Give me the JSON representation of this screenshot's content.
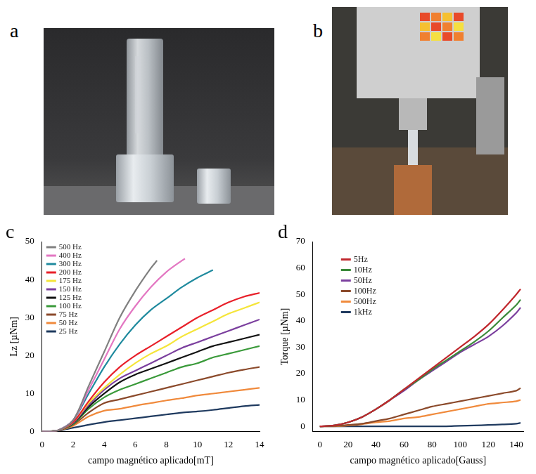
{
  "photos": [
    {
      "panel_label": "a"
    },
    {
      "panel_label": "b"
    }
  ],
  "chart_data": [
    {
      "panel_label": "c",
      "type": "line",
      "x_label": "campo magnético aplicado[mT]",
      "y_label": "Lz [µNm]",
      "xlim": [
        0,
        14
      ],
      "xticks": [
        0,
        2,
        4,
        6,
        8,
        10,
        12,
        14
      ],
      "ylim": [
        0,
        50
      ],
      "yticks": [
        0,
        10,
        20,
        30,
        40,
        50
      ],
      "grid": false,
      "legend": "upper left",
      "series": [
        {
          "name": "500 Hz",
          "color": "#808080",
          "x": [
            0,
            1,
            2,
            3,
            4,
            5,
            6,
            7,
            7.4
          ],
          "values": [
            0,
            0.3,
            3,
            12,
            21,
            30,
            37,
            43,
            45
          ]
        },
        {
          "name": "400 Hz",
          "color": "#e377c2",
          "x": [
            0,
            1,
            2,
            3,
            4,
            5,
            6,
            7,
            8,
            9,
            9.2
          ],
          "values": [
            0,
            0.3,
            3,
            11,
            19,
            27,
            33,
            38,
            42,
            45,
            45.5
          ]
        },
        {
          "name": "300 Hz",
          "color": "#1f8a9e",
          "x": [
            0,
            1,
            2,
            3,
            4,
            5,
            6,
            7,
            8,
            9,
            10,
            11
          ],
          "values": [
            0,
            0.3,
            3,
            10,
            17,
            23,
            28,
            32,
            35,
            38,
            40.5,
            42.5
          ]
        },
        {
          "name": "200 Hz",
          "color": "#e8202a",
          "x": [
            0,
            1,
            2,
            3,
            4,
            5,
            6,
            7,
            8,
            9,
            10,
            11,
            12,
            13,
            14
          ],
          "values": [
            0,
            0.3,
            2.5,
            8,
            13,
            17,
            20,
            22.5,
            25,
            27.5,
            30,
            32,
            34,
            35.5,
            36.5
          ]
        },
        {
          "name": "175 Hz",
          "color": "#f5e53a",
          "x": [
            0,
            1,
            2,
            3,
            4,
            5,
            6,
            7,
            8,
            9,
            10,
            11,
            12,
            13,
            14
          ],
          "values": [
            0,
            0.3,
            2.5,
            7.5,
            11.5,
            15,
            18,
            20.5,
            22.5,
            25,
            27,
            29,
            31,
            32.5,
            34
          ]
        },
        {
          "name": "150 Hz",
          "color": "#7b3f9e",
          "x": [
            0,
            1,
            2,
            3,
            4,
            5,
            6,
            7,
            8,
            9,
            10,
            11,
            12,
            13,
            14
          ],
          "values": [
            0,
            0.3,
            2.3,
            7,
            11,
            14,
            16,
            18,
            20,
            22,
            23.5,
            25,
            26.5,
            28,
            29.5
          ]
        },
        {
          "name": "125 Hz",
          "color": "#111111",
          "x": [
            0,
            1,
            2,
            3,
            4,
            5,
            6,
            7,
            8,
            9,
            10,
            11,
            12,
            13,
            14
          ],
          "values": [
            0,
            0.3,
            2.2,
            6.5,
            10,
            13,
            15,
            16.5,
            18,
            19.5,
            21,
            22.5,
            23.5,
            24.5,
            25.5
          ]
        },
        {
          "name": "100 Hz",
          "color": "#3a9a3a",
          "x": [
            0,
            1,
            2,
            3,
            4,
            5,
            6,
            7,
            8,
            9,
            10,
            11,
            12,
            13,
            14
          ],
          "values": [
            0,
            0.3,
            2,
            6,
            9,
            11,
            12.5,
            14,
            15.5,
            17,
            18,
            19.5,
            20.5,
            21.5,
            22.5
          ]
        },
        {
          "name": "75 Hz",
          "color": "#8b4a2b",
          "x": [
            0,
            1,
            2,
            3,
            4,
            5,
            6,
            7,
            8,
            9,
            10,
            11,
            12,
            13,
            14
          ],
          "values": [
            0,
            0.3,
            1.8,
            5,
            7.5,
            8.5,
            9.5,
            10.5,
            11.5,
            12.5,
            13.5,
            14.5,
            15.5,
            16.3,
            17
          ]
        },
        {
          "name": "50 Hz",
          "color": "#f08a3c",
          "x": [
            0,
            1,
            2,
            3,
            4,
            5,
            6,
            7,
            8,
            9,
            10,
            11,
            12,
            13,
            14
          ],
          "values": [
            0,
            0.3,
            1.5,
            4,
            5.5,
            6,
            6.8,
            7.5,
            8.2,
            8.8,
            9.5,
            10,
            10.5,
            11,
            11.5
          ]
        },
        {
          "name": "25 Hz",
          "color": "#1f3a5f",
          "x": [
            0,
            1,
            2,
            3,
            4,
            5,
            6,
            7,
            8,
            9,
            10,
            11,
            12,
            13,
            14
          ],
          "values": [
            0,
            0.2,
            1,
            1.8,
            2.5,
            3,
            3.5,
            4,
            4.5,
            5,
            5.3,
            5.7,
            6.2,
            6.7,
            7
          ]
        }
      ]
    },
    {
      "panel_label": "d",
      "type": "line",
      "x_label": "campo magnético aplicado[Gauss]",
      "y_label": "Torque [µNm]",
      "xlim": [
        -5,
        145
      ],
      "xticks": [
        0,
        20,
        40,
        60,
        80,
        100,
        120,
        140
      ],
      "ylim": [
        -2,
        70
      ],
      "yticks": [
        0,
        10,
        20,
        30,
        40,
        50,
        60,
        70
      ],
      "grid": false,
      "legend": "upper left",
      "x": [
        0,
        10,
        20,
        30,
        40,
        50,
        60,
        70,
        80,
        90,
        100,
        110,
        120,
        130,
        140,
        143
      ],
      "series": [
        {
          "name": "5Hz",
          "color": "#c0272d",
          "values": [
            0,
            0.3,
            1.5,
            3.5,
            6.5,
            10,
            14,
            18,
            22,
            26,
            30,
            34,
            38.5,
            44,
            50,
            52
          ]
        },
        {
          "name": "10Hz",
          "color": "#3a8a3a",
          "values": [
            0,
            0.3,
            1.5,
            3.5,
            6.5,
            10,
            14,
            17.5,
            21.5,
            25,
            28.5,
            32,
            36,
            41,
            46,
            48
          ]
        },
        {
          "name": "50Hz",
          "color": "#7b3f9e",
          "values": [
            0,
            0.3,
            1.5,
            3.5,
            6.5,
            10,
            13.5,
            17.5,
            21,
            24.5,
            28,
            31,
            34,
            38,
            43,
            45
          ]
        },
        {
          "name": "100Hz",
          "color": "#8b4a2b",
          "values": [
            0,
            0.1,
            0.5,
            1,
            2,
            3,
            4.5,
            6,
            7.5,
            8.5,
            9.5,
            10.5,
            11.5,
            12.5,
            13.5,
            14.5
          ]
        },
        {
          "name": "500Hz",
          "color": "#f08a3c",
          "values": [
            0,
            0,
            0.3,
            0.8,
            1.5,
            2,
            3,
            3.5,
            4.5,
            5.5,
            6.5,
            7.5,
            8.5,
            9,
            9.5,
            10
          ]
        },
        {
          "name": "1kHz",
          "color": "#1f3a5f",
          "values": [
            0,
            0,
            0,
            0,
            0,
            0,
            0,
            0,
            0,
            0,
            0.2,
            0.3,
            0.5,
            0.7,
            1,
            1.3
          ]
        }
      ]
    }
  ]
}
